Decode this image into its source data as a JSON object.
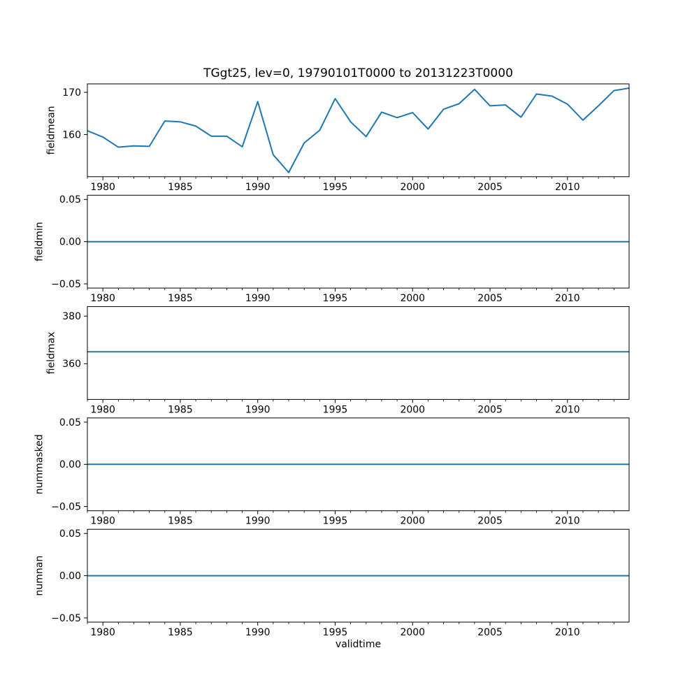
{
  "figure": {
    "background": "#ffffff",
    "accent_color": "#1f77b4",
    "spine_color": "#000000",
    "text_color": "#000000"
  },
  "chart_data": {
    "type": "line",
    "title": "TGgt25, lev=0, 19790101T0000 to 20131223T0000",
    "xlabel": "validtime",
    "legend": "none",
    "grid": false,
    "xlim": [
      1979.0,
      2013.98
    ],
    "xticks_major": [
      1980,
      1985,
      1990,
      1995,
      2000,
      2005,
      2010
    ],
    "xticks_minor_every_years": 1,
    "subplots": [
      {
        "ylabel": "fieldmean",
        "ylim": [
          150,
          172
        ],
        "yticks": [
          160,
          170
        ],
        "ytick_labels": [
          "160",
          "170"
        ],
        "x": [
          1979,
          1980,
          1981,
          1982,
          1983,
          1984,
          1985,
          1986,
          1987,
          1988,
          1989,
          1990,
          1991,
          1992,
          1993,
          1994,
          1995,
          1996,
          1997,
          1998,
          1999,
          2000,
          2001,
          2002,
          2003,
          2004,
          2005,
          2006,
          2007,
          2008,
          2009,
          2010,
          2011,
          2012,
          2013,
          2013.98
        ],
        "y": [
          160.9,
          159.4,
          157.0,
          157.3,
          157.2,
          163.2,
          163.0,
          162.0,
          159.6,
          159.6,
          157.1,
          167.8,
          155.2,
          151.0,
          158.0,
          161.0,
          168.5,
          163.0,
          159.5,
          165.3,
          164.0,
          165.2,
          161.3,
          166.0,
          167.3,
          170.7,
          166.8,
          167.0,
          164.1,
          169.6,
          169.1,
          167.2,
          163.4,
          166.8,
          170.4,
          171.0
        ]
      },
      {
        "ylabel": "fieldmin",
        "ylim": [
          -0.055,
          0.055
        ],
        "yticks": [
          -0.05,
          0.0,
          0.05
        ],
        "ytick_labels": [
          "−0.05",
          "0.00",
          "0.05"
        ],
        "x": [
          1979,
          2013.98
        ],
        "y": [
          0.0,
          0.0
        ]
      },
      {
        "ylabel": "fieldmax",
        "ylim": [
          345,
          384
        ],
        "yticks": [
          360,
          380
        ],
        "ytick_labels": [
          "360",
          "380"
        ],
        "x": [
          1979,
          2013.98
        ],
        "y": [
          365,
          365
        ]
      },
      {
        "ylabel": "nummasked",
        "ylim": [
          -0.055,
          0.055
        ],
        "yticks": [
          -0.05,
          0.0,
          0.05
        ],
        "ytick_labels": [
          "−0.05",
          "0.00",
          "0.05"
        ],
        "x": [
          1979,
          2013.98
        ],
        "y": [
          0.0,
          0.0
        ]
      },
      {
        "ylabel": "numnan",
        "ylim": [
          -0.055,
          0.055
        ],
        "yticks": [
          -0.05,
          0.0,
          0.05
        ],
        "ytick_labels": [
          "−0.05",
          "0.00",
          "0.05"
        ],
        "x": [
          1979,
          2013.98
        ],
        "y": [
          0.0,
          0.0
        ]
      }
    ]
  }
}
